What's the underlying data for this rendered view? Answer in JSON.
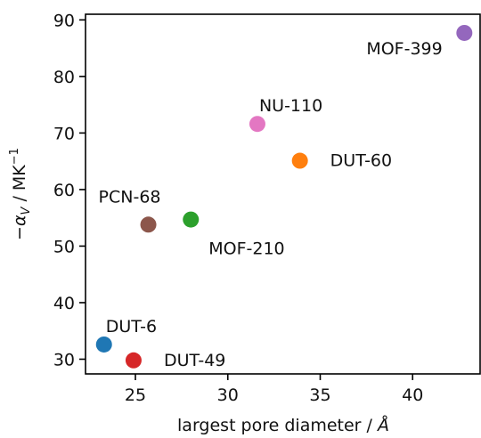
{
  "chart_data": {
    "type": "scatter",
    "xlabel_main": "largest pore diameter / ",
    "xlabel_unit": "Å",
    "ylabel_prefix": "−",
    "ylabel_symbol": "α",
    "ylabel_subscript": "V",
    "ylabel_unit_main": " / MK",
    "ylabel_unit_exp": "−1",
    "xlim": [
      22.3,
      43.7
    ],
    "ylim": [
      27.4,
      91.0
    ],
    "xticks": [
      25,
      30,
      35,
      40
    ],
    "yticks": [
      30,
      40,
      50,
      60,
      70,
      80,
      90
    ],
    "grid": false,
    "points": [
      {
        "label": "DUT-6",
        "x": 23.3,
        "y": 32.6,
        "color": "#1f77b4",
        "label_pos": "above-right"
      },
      {
        "label": "DUT-49",
        "x": 24.9,
        "y": 29.8,
        "color": "#d62728",
        "label_pos": "right"
      },
      {
        "label": "PCN-68",
        "x": 25.7,
        "y": 53.8,
        "color": "#8c564b",
        "label_pos": "above-left"
      },
      {
        "label": "MOF-210",
        "x": 28.0,
        "y": 54.7,
        "color": "#2ca02c",
        "label_pos": "below-right"
      },
      {
        "label": "NU-110",
        "x": 31.6,
        "y": 71.6,
        "color": "#e377c2",
        "label_pos": "above-right"
      },
      {
        "label": "DUT-60",
        "x": 33.9,
        "y": 65.1,
        "color": "#ff7f0e",
        "label_pos": "right"
      },
      {
        "label": "MOF-399",
        "x": 42.8,
        "y": 87.7,
        "color": "#9467bd",
        "label_pos": "below-left"
      }
    ]
  }
}
